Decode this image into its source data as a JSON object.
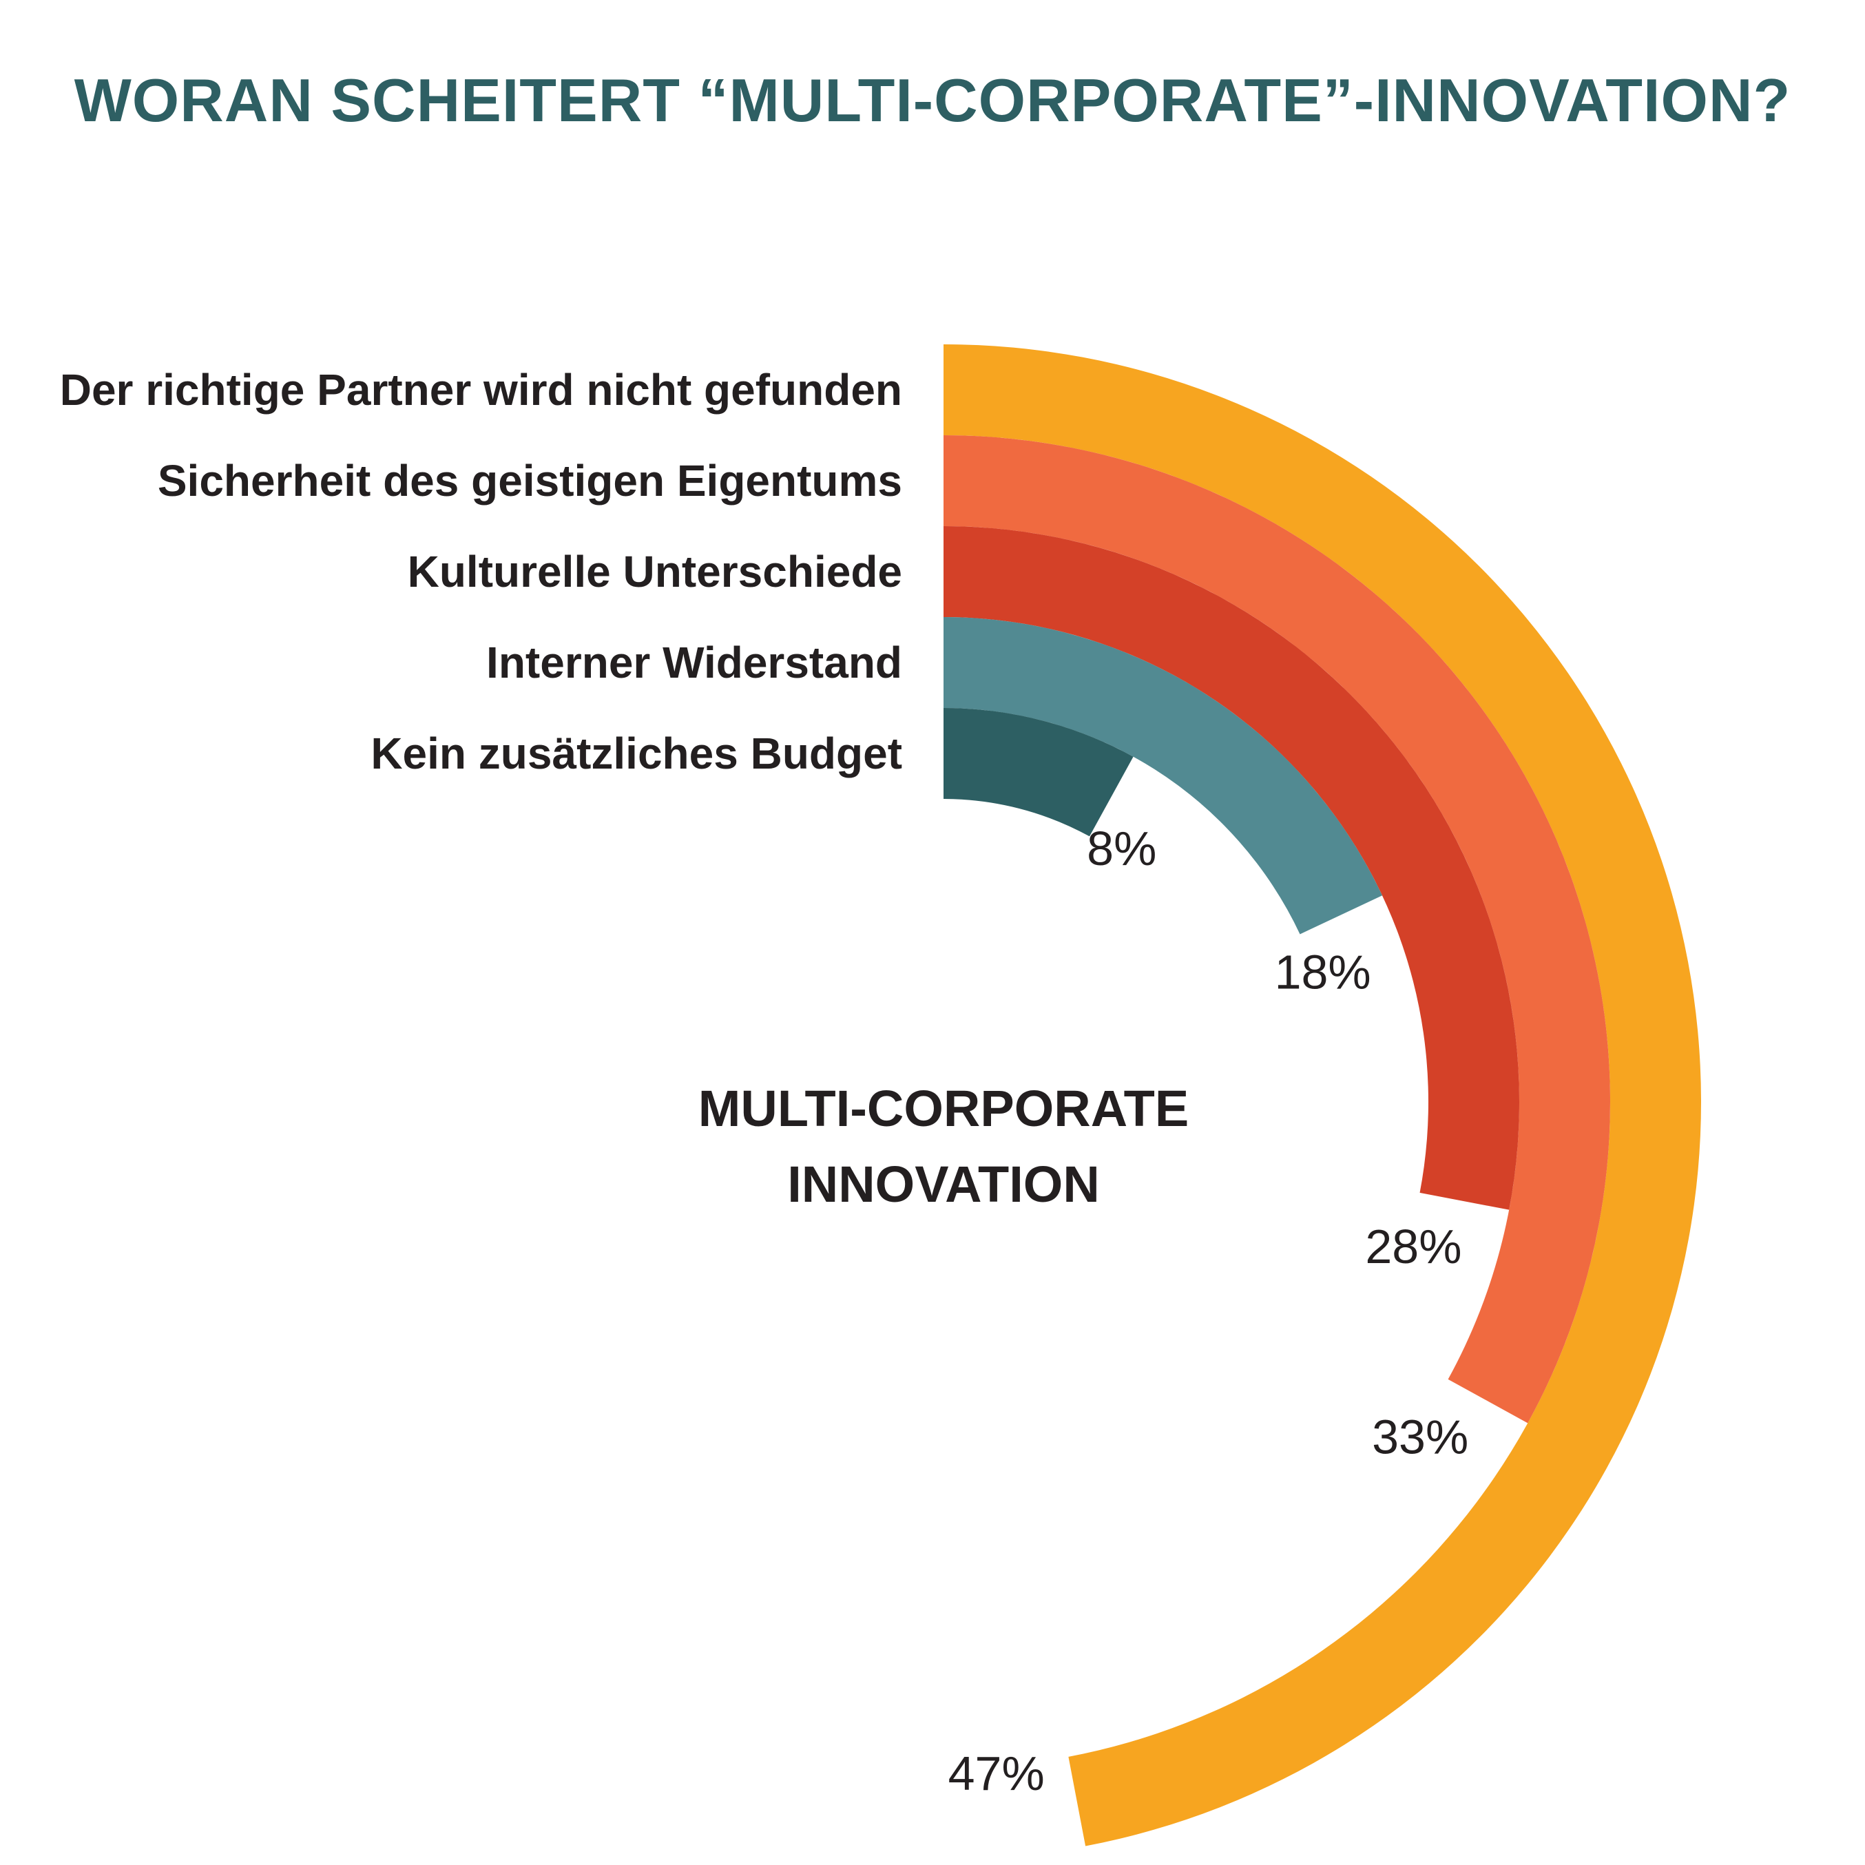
{
  "title": "WORAN SCHEITERT “MULTI-CORPORATE”-INNOVATION?",
  "center_label": [
    "MULTI-CORPORATE",
    "INNOVATION"
  ],
  "chart_data": {
    "type": "radial-bar",
    "title": "WORAN SCHEITERT “MULTI-CORPORATE”-INNOVATION?",
    "center_text": "MULTI-CORPORATE INNOVATION",
    "unit": "%",
    "categories": [
      "Der richtige Partner wird nicht gefunden",
      "Sicherheit des geistigen Eigentums",
      "Kulturelle Unterschiede",
      "Interner Widerstand",
      "Kein zusätzliches Budget"
    ],
    "values": [
      47,
      33,
      28,
      18,
      8
    ],
    "value_labels": [
      "47%",
      "33%",
      "28%",
      "18%",
      "8%"
    ],
    "colors": [
      "#f7a520",
      "#f06a40",
      "#d44128",
      "#528a92",
      "#2d5f63"
    ]
  }
}
